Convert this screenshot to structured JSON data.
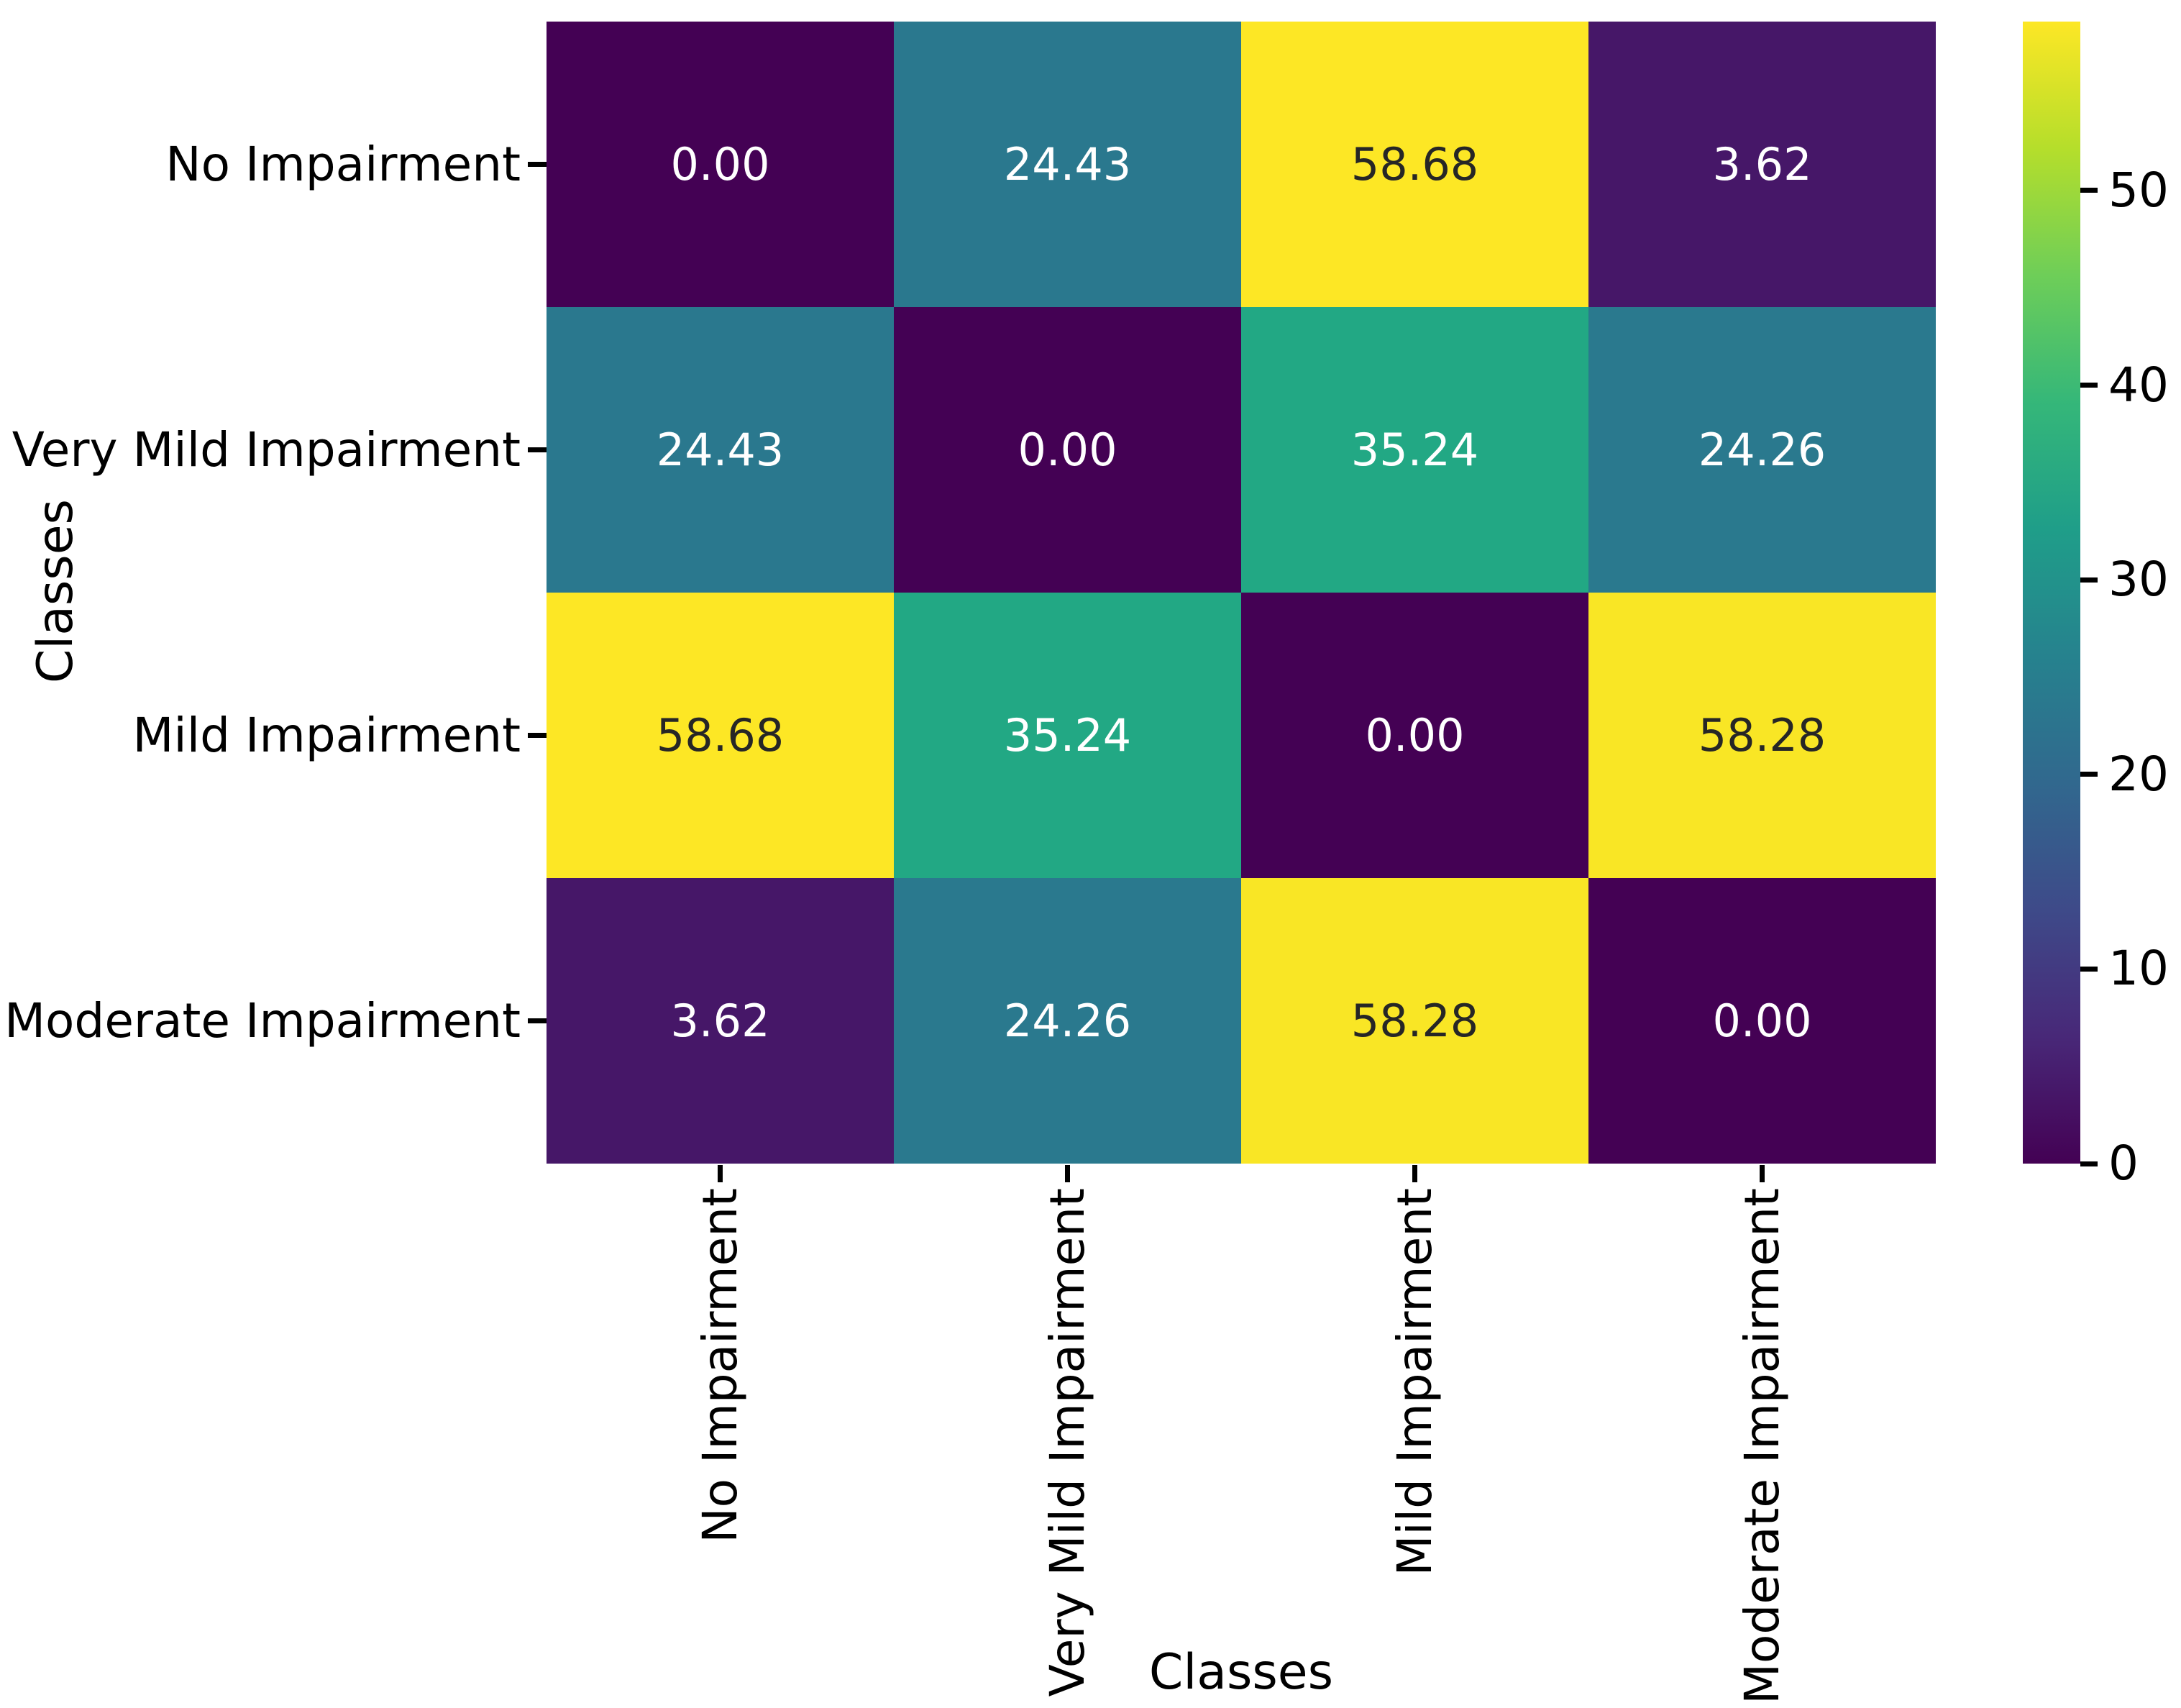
{
  "chart_data": {
    "type": "heatmap",
    "title": "",
    "xlabel": "Classes",
    "ylabel": "Classes",
    "categories": [
      "No Impairment",
      "Very Mild Impairment",
      "Mild Impairment",
      "Moderate Impairment"
    ],
    "matrix": [
      [
        0.0,
        24.43,
        58.68,
        3.62
      ],
      [
        24.43,
        0.0,
        35.24,
        24.26
      ],
      [
        58.68,
        35.24,
        0.0,
        58.28
      ],
      [
        3.62,
        24.26,
        58.28,
        0.0
      ]
    ],
    "value_format_decimals": 2,
    "colormap": "viridis",
    "vmin": 0,
    "vmax": 58.68,
    "colorbar_ticks": [
      0,
      10,
      20,
      30,
      40,
      50
    ],
    "legend_position": "right-colorbar",
    "grid": false
  },
  "style": {
    "background": "#ffffff",
    "tick_color": "#000000",
    "cell_colors": [
      [
        "#440154",
        "#2a788e",
        "#fde725",
        "#461768"
      ],
      [
        "#2a788e",
        "#440154",
        "#22a884",
        "#2a798e"
      ],
      [
        "#fde725",
        "#22a884",
        "#440154",
        "#f9e625"
      ],
      [
        "#461768",
        "#2a798e",
        "#f9e625",
        "#440154"
      ]
    ],
    "cell_text_colors": [
      [
        "#ffffff",
        "#ffffff",
        "#262626",
        "#ffffff"
      ],
      [
        "#ffffff",
        "#ffffff",
        "#ffffff",
        "#ffffff"
      ],
      [
        "#262626",
        "#ffffff",
        "#ffffff",
        "#262626"
      ],
      [
        "#ffffff",
        "#ffffff",
        "#262626",
        "#ffffff"
      ]
    ],
    "colorbar_gradient_stops": [
      "#440154",
      "#482878",
      "#3e4a89",
      "#31688e",
      "#26828e",
      "#1f9e89",
      "#35b779",
      "#6ece58",
      "#b5de2b",
      "#fde725"
    ]
  }
}
